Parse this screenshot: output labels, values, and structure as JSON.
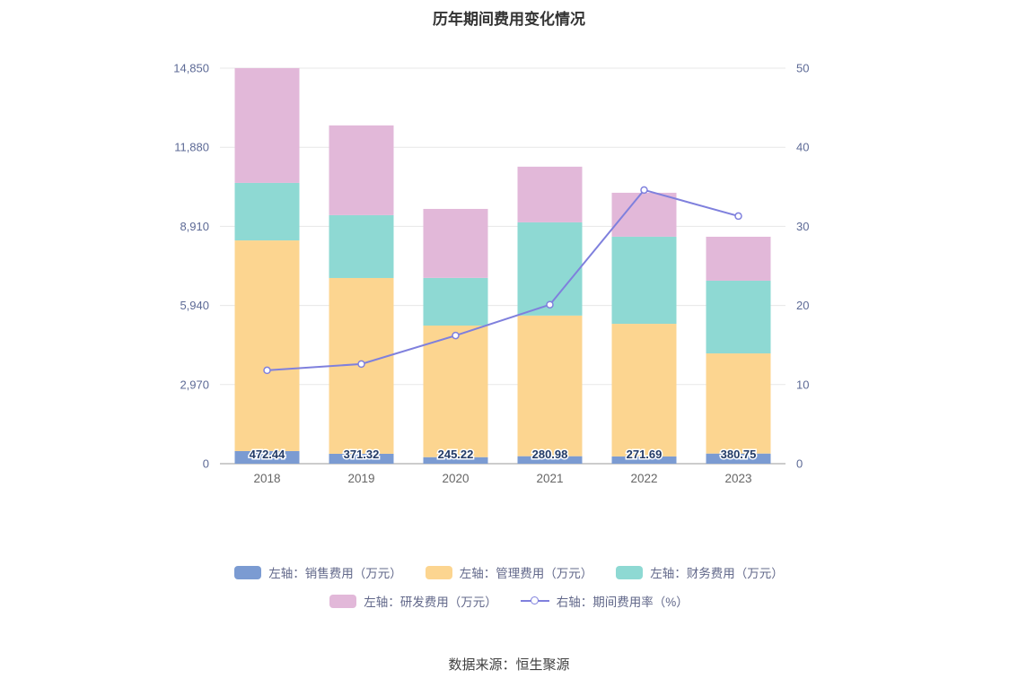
{
  "chart_data": {
    "type": "bar",
    "subtype": "stacked-bar-with-line",
    "title": "历年期间费用变化情况",
    "categories": [
      "2018",
      "2019",
      "2020",
      "2021",
      "2022",
      "2023"
    ],
    "bar_series": [
      {
        "name": "左轴：销售费用（万元）",
        "color": "#7b9bd2",
        "values": [
          472.44,
          371.32,
          245.22,
          280.98,
          271.69,
          380.75
        ]
      },
      {
        "name": "左轴：管理费用（万元）",
        "color": "#fcd590",
        "values": [
          7910,
          6600,
          4940,
          5280,
          4980,
          3760
        ]
      },
      {
        "name": "左轴：财务费用（万元）",
        "color": "#8ed9d3",
        "values": [
          2160,
          2360,
          1790,
          3500,
          3270,
          2730
        ]
      },
      {
        "name": "左轴：研发费用（万元）",
        "color": "#e2b8d9",
        "values": [
          4310,
          3370,
          2590,
          2090,
          1650,
          1650
        ]
      }
    ],
    "line_series": {
      "name": "右轴：期间费用率（%）",
      "color": "#7f80dd",
      "values": [
        11.8,
        12.6,
        16.2,
        20.1,
        34.6,
        31.3
      ]
    },
    "bar_labels": [
      "472.44",
      "371.32",
      "245.22",
      "280.98",
      "271.69",
      "380.75"
    ],
    "left_axis": {
      "ticks": [
        "0",
        "2,970",
        "5,940",
        "8,910",
        "11,880",
        "14,850"
      ],
      "max": 14850
    },
    "right_axis": {
      "ticks": [
        "0",
        "10",
        "20",
        "30",
        "40",
        "50"
      ],
      "max": 50
    },
    "grid": true,
    "legend_position": "bottom",
    "source": "数据来源：恒生聚源"
  }
}
